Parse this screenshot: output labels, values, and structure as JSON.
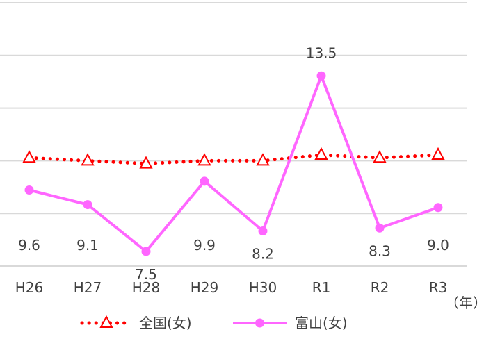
{
  "chart_data": {
    "type": "line",
    "categories": [
      "H26",
      "H27",
      "H28",
      "H29",
      "H30",
      "R1",
      "R2",
      "R3"
    ],
    "unit_label": "（年）",
    "ylim": [
      7.0,
      16.0
    ],
    "grid": true,
    "legend_position": "bottom",
    "series": [
      {
        "name": "全国(女)",
        "values": [
          10.7,
          10.6,
          10.5,
          10.6,
          10.6,
          10.8,
          10.7,
          10.8
        ],
        "color": "#ff0000",
        "style": "dotted",
        "marker": "triangle-open",
        "show_labels": false
      },
      {
        "name": "富山(女)",
        "values": [
          9.6,
          9.1,
          7.5,
          9.9,
          8.2,
          13.5,
          8.3,
          9.0
        ],
        "labels": [
          "9.6",
          "9.1",
          "7.5",
          "9.9",
          "8.2",
          "13.5",
          "8.3",
          "9.0"
        ],
        "color": "#ff66ff",
        "style": "solid",
        "marker": "circle",
        "show_labels": true
      }
    ]
  }
}
